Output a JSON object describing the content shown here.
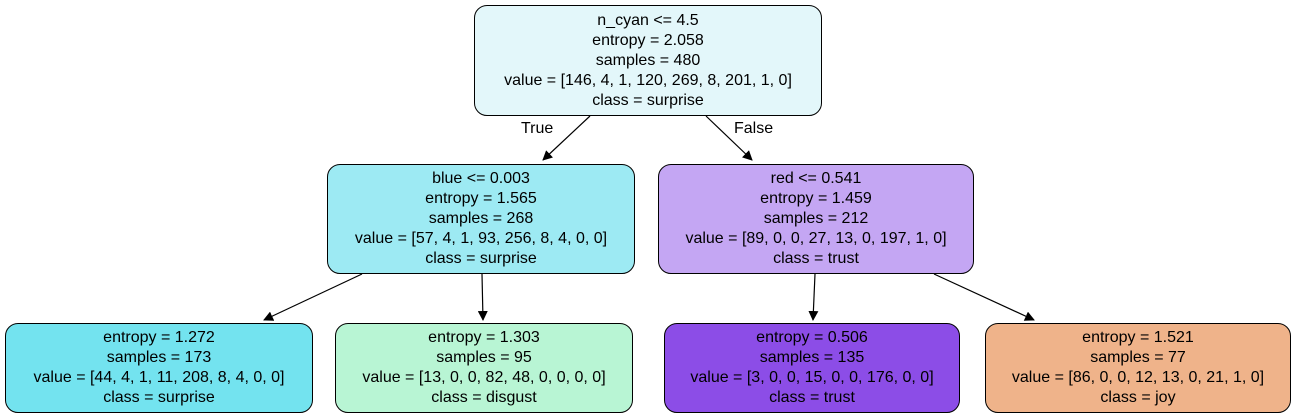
{
  "tree": {
    "nodes": [
      {
        "id": "n0",
        "split": "n_cyan <= 4.5",
        "entropy": "entropy = 2.058",
        "samples": "samples = 480",
        "value": "value = [146, 4, 1, 120, 269, 8, 201, 1, 0]",
        "class": "class = surprise",
        "fill": "#e3f7fa"
      },
      {
        "id": "n1",
        "split": "blue <= 0.003",
        "entropy": "entropy = 1.565",
        "samples": "samples = 268",
        "value": "value = [57, 4, 1, 93, 256, 8, 4, 0, 0]",
        "class": "class = surprise",
        "fill": "#9deaf3"
      },
      {
        "id": "n2",
        "split": "red <= 0.541",
        "entropy": "entropy = 1.459",
        "samples": "samples = 212",
        "value": "value = [89, 0, 0, 27, 13, 0, 197, 1, 0]",
        "class": "class = trust",
        "fill": "#c4a6f3"
      },
      {
        "id": "n3",
        "split": "",
        "entropy": "entropy = 1.272",
        "samples": "samples = 173",
        "value": "value = [44, 4, 1, 11, 208, 8, 4, 0, 0]",
        "class": "class = surprise",
        "fill": "#73e3ef"
      },
      {
        "id": "n4",
        "split": "",
        "entropy": "entropy = 1.303",
        "samples": "samples = 95",
        "value": "value = [13, 0, 0, 82, 48, 0, 0, 0, 0]",
        "class": "class = disgust",
        "fill": "#b8f5d4"
      },
      {
        "id": "n5",
        "split": "",
        "entropy": "entropy = 0.506",
        "samples": "samples = 135",
        "value": "value = [3, 0, 0, 15, 0, 0, 176, 0, 0]",
        "class": "class = trust",
        "fill": "#8c4de7"
      },
      {
        "id": "n6",
        "split": "",
        "entropy": "entropy = 1.521",
        "samples": "samples = 77",
        "value": "value = [86, 0, 0, 12, 13, 0, 21, 1, 0]",
        "class": "class = joy",
        "fill": "#efb38a"
      }
    ],
    "edge_labels": {
      "true_label": "True",
      "false_label": "False"
    }
  }
}
